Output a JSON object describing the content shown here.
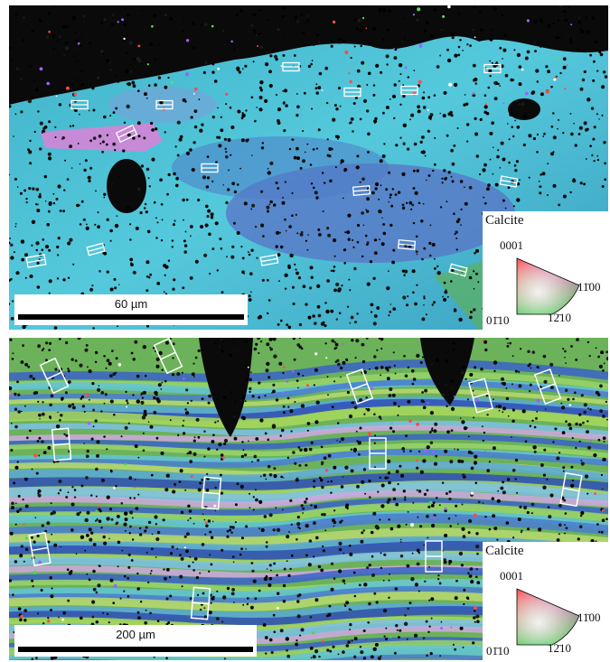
{
  "panels": [
    {
      "id": "top",
      "scalebar": {
        "label": "60 µm"
      },
      "legend": {
        "title": "Calcite",
        "corner_top": "0001",
        "corner_right": "11̄00",
        "corner_bottom_left": "01̄10",
        "corner_bottom_right": "12̄10"
      }
    },
    {
      "id": "bottom",
      "scalebar": {
        "label": "200 µm"
      },
      "legend": {
        "title": "Calcite",
        "corner_top": "0001",
        "corner_right": "11̄00",
        "corner_bottom_left": "01̄10",
        "corner_bottom_right": "12̄10"
      }
    }
  ],
  "colors": {
    "background_void": "#0a0a0a",
    "cyan_grain": "#47c2d8",
    "blue_grain": "#5a6fc8",
    "violet_grain": "#c48ad8",
    "green_grain": "#8fd468",
    "crystal_outline": "#ffffff"
  }
}
